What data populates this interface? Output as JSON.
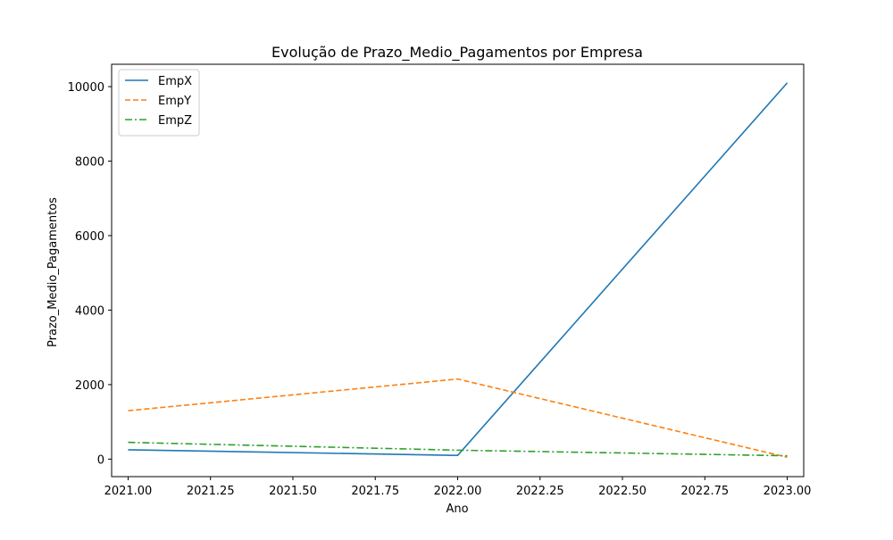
{
  "chart_data": {
    "type": "line",
    "title": "Evolução de Prazo_Medio_Pagamentos por Empresa",
    "xlabel": "Ano",
    "ylabel": "Prazo_Medio_Pagamentos",
    "x": [
      2021,
      2022,
      2023
    ],
    "xlim": [
      2020.95,
      2023.05
    ],
    "ylim": [
      -470,
      10600
    ],
    "xticks": [
      2021.0,
      2021.25,
      2021.5,
      2021.75,
      2022.0,
      2022.25,
      2022.5,
      2022.75,
      2023.0
    ],
    "xtick_labels": [
      "2021.00",
      "2021.25",
      "2021.50",
      "2021.75",
      "2022.00",
      "2022.25",
      "2022.50",
      "2022.75",
      "2023.00"
    ],
    "yticks": [
      0,
      2000,
      4000,
      6000,
      8000,
      10000
    ],
    "ytick_labels": [
      "0",
      "2000",
      "4000",
      "6000",
      "8000",
      "10000"
    ],
    "grid": false,
    "legend_position": "top-left",
    "series": [
      {
        "name": "EmpX",
        "values": [
          250,
          100,
          10100
        ],
        "color": "#1f77b4",
        "style": "solid"
      },
      {
        "name": "EmpY",
        "values": [
          1300,
          2150,
          50
        ],
        "color": "#ff7f0e",
        "style": "dashed"
      },
      {
        "name": "EmpZ",
        "values": [
          450,
          240,
          90
        ],
        "color": "#2ca02c",
        "style": "dashdot"
      }
    ]
  }
}
